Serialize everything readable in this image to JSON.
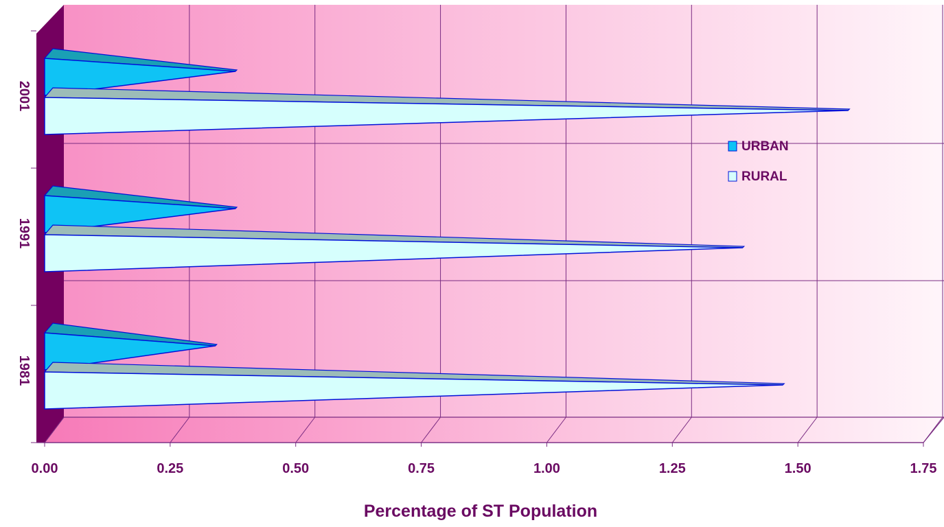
{
  "chart_data": {
    "type": "bar",
    "orientation": "horizontal",
    "style": "3d-cone",
    "categories": [
      "1981",
      "1991",
      "2001"
    ],
    "series": [
      {
        "name": "URBAN",
        "values": [
          0.34,
          0.38,
          0.38
        ]
      },
      {
        "name": "RURAL",
        "values": [
          1.47,
          1.39,
          1.6
        ]
      }
    ],
    "title": "",
    "xlabel": "Percentage of ST Population",
    "ylabel": "",
    "xlim": [
      0,
      1.75
    ],
    "x_ticks": [
      "0.00",
      "0.25",
      "0.50",
      "0.75",
      "1.00",
      "1.25",
      "1.50",
      "1.75"
    ],
    "legend_position": "right",
    "grid": true
  },
  "colors": {
    "text": "#6a0a62",
    "urban_fill": "#0fc3f5",
    "urban_top": "#1aa0b5",
    "rural_fill": "#d6fffd",
    "rural_top": "#9cbcb8",
    "bar_outline": "#0010d8",
    "grid": "#7a2c82",
    "side_wall": "#74005f",
    "floor": "#f77ab8",
    "wall_left": "#f891c5",
    "wall_right": "#fff5fa"
  }
}
